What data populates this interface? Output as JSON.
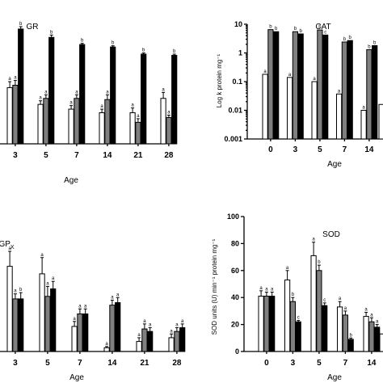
{
  "chart_data": [
    {
      "id": "gr",
      "type": "bar",
      "title": "GR",
      "xlabel": "Age",
      "ylabel": "",
      "categories": [
        "3",
        "5",
        "7",
        "14",
        "21",
        "28"
      ],
      "ylim": [
        0,
        100
      ],
      "series": [
        {
          "color": "#ffffff",
          "values": [
            47,
            33,
            29,
            26,
            26,
            38
          ],
          "errors": [
            5,
            3,
            3,
            3,
            4,
            5
          ],
          "labels": [
            "a",
            "a",
            "a",
            "a",
            "a",
            "a"
          ]
        },
        {
          "color": "#7f7f7f",
          "values": [
            49,
            38,
            38,
            37,
            18,
            22
          ],
          "errors": [
            4,
            3,
            3,
            4,
            3,
            2
          ],
          "labels": [
            "a",
            "a",
            "a",
            "a",
            "a",
            "a"
          ]
        },
        {
          "color": "#000000",
          "values": [
            96,
            89,
            83,
            81,
            75,
            74
          ],
          "errors": [
            2,
            2,
            1,
            1,
            1,
            1
          ],
          "labels": [
            "b",
            "b",
            "b",
            "b",
            "b",
            "b"
          ]
        }
      ]
    },
    {
      "id": "cat",
      "type": "bar",
      "title": "CAT",
      "xlabel": "Age",
      "ylabel": "Log k protein mg⁻¹",
      "log": true,
      "ylim": [
        0.001,
        10
      ],
      "yticks": [
        "0.001",
        "0.01",
        "0.1",
        "1",
        "10"
      ],
      "categories": [
        "0",
        "3",
        "5",
        "7",
        "14"
      ],
      "series": [
        {
          "color": "#ffffff",
          "values": [
            0.18,
            0.14,
            0.1,
            0.037,
            0.01
          ],
          "labels": [
            "a",
            "a",
            "a",
            "a",
            "a"
          ]
        },
        {
          "color": "#7f7f7f",
          "values": [
            6.5,
            5.5,
            6.3,
            2.4,
            1.3
          ],
          "labels": [
            "b",
            "b",
            "b",
            "b",
            "b"
          ]
        },
        {
          "color": "#000000",
          "values": [
            5.5,
            4.6,
            4.2,
            2.7,
            1.8
          ],
          "labels": [
            "b",
            "b",
            "c",
            "b",
            "b"
          ]
        }
      ],
      "partial_bar": {
        "value": 0.016
      }
    },
    {
      "id": "gpx",
      "type": "bar",
      "title": "GP",
      "title_sub": "X",
      "xlabel": "Age",
      "ylabel": "",
      "categories": [
        "3",
        "5",
        "7",
        "14",
        "21",
        "28"
      ],
      "ylim": [
        0,
        100
      ],
      "series": [
        {
          "color": "#ffffff",
          "values": [
            68,
            62,
            20,
            3,
            8,
            11
          ],
          "errors": [
            12,
            13,
            4,
            1,
            3,
            3
          ],
          "labels": [
            "a",
            "a",
            "a",
            "a",
            "a",
            "a"
          ]
        },
        {
          "color": "#7f7f7f",
          "values": [
            42,
            44,
            30,
            37,
            18,
            16
          ],
          "errors": [
            4,
            8,
            4,
            4,
            4,
            3
          ],
          "labels": [
            "a",
            "a",
            "a",
            "a",
            "a",
            "a"
          ]
        },
        {
          "color": "#000000",
          "values": [
            42,
            50,
            30,
            39,
            16,
            19
          ],
          "errors": [
            5,
            6,
            4,
            4,
            3,
            3
          ],
          "labels": [
            "b",
            "a",
            "a",
            "a",
            "a",
            "a"
          ]
        }
      ]
    },
    {
      "id": "sod",
      "type": "bar",
      "title": "SOD",
      "xlabel": "Age",
      "ylabel": "SOD units (U) min⁻¹ protein mg⁻¹",
      "yticks": [
        "0",
        "20",
        "40",
        "60",
        "80",
        "100"
      ],
      "categories": [
        "0",
        "3",
        "5",
        "7",
        "14"
      ],
      "ylim": [
        0,
        100
      ],
      "series": [
        {
          "color": "#ffffff",
          "values": [
            41,
            53,
            71,
            33,
            26
          ],
          "errors": [
            4,
            7,
            10,
            4,
            3
          ],
          "labels": [
            "a",
            "a",
            "a",
            "a",
            "a"
          ]
        },
        {
          "color": "#7f7f7f",
          "values": [
            41,
            37,
            60,
            27,
            22
          ],
          "errors": [
            3,
            3,
            4,
            3,
            3
          ],
          "labels": [
            "a",
            "b",
            "b",
            "a",
            "a"
          ]
        },
        {
          "color": "#000000",
          "values": [
            41,
            22,
            34,
            9,
            18
          ],
          "errors": [
            3,
            1,
            2,
            1,
            2
          ],
          "labels": [
            "a",
            "c",
            "c",
            "b",
            "a"
          ]
        }
      ],
      "partial_bar": {
        "value": 13
      }
    }
  ]
}
